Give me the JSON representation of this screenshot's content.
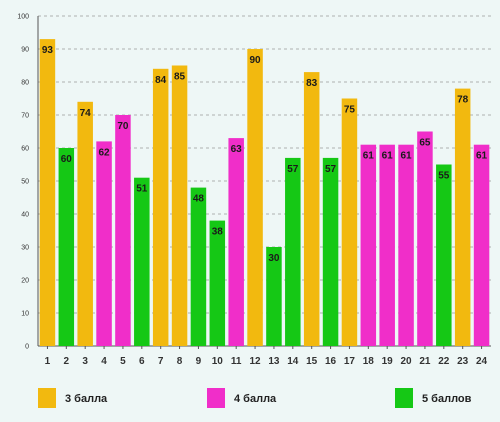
{
  "colors": {
    "orange": "#f2b90f",
    "green": "#15c815",
    "magenta": "#f02ec9",
    "grid": "#999999",
    "axis": "#555555",
    "text": "#333333"
  },
  "chart_data": {
    "type": "bar",
    "title": "",
    "xlabel": "",
    "ylabel": "",
    "ylim": [
      0,
      100
    ],
    "yticks": [
      0,
      10,
      20,
      30,
      40,
      50,
      60,
      70,
      80,
      90,
      100
    ],
    "grid": true,
    "legend_position": "bottom",
    "categories": [
      "1",
      "2",
      "3",
      "4",
      "5",
      "6",
      "7",
      "8",
      "9",
      "10",
      "11",
      "12",
      "13",
      "14",
      "15",
      "16",
      "17",
      "18",
      "19",
      "20",
      "21",
      "22",
      "23",
      "24"
    ],
    "values": [
      93,
      60,
      74,
      62,
      70,
      51,
      84,
      85,
      48,
      38,
      63,
      90,
      30,
      57,
      83,
      57,
      75,
      61,
      61,
      61,
      65,
      55,
      78,
      61
    ],
    "groups": [
      "3 балла",
      "5 баллов",
      "3 балла",
      "4 балла",
      "4 балла",
      "5 баллов",
      "3 балла",
      "3 балла",
      "5 баллов",
      "5 баллов",
      "4 балла",
      "3 балла",
      "5 баллов",
      "5 баллов",
      "3 балла",
      "5 баллов",
      "3 балла",
      "4 балла",
      "4 балла",
      "4 балла",
      "4 балла",
      "5 баллов",
      "3 балла",
      "4 балла"
    ],
    "legend": [
      {
        "name": "3 балла",
        "color": "#f2b90f"
      },
      {
        "name": "4 балла",
        "color": "#f02ec9"
      },
      {
        "name": "5 баллов",
        "color": "#15c815"
      }
    ]
  }
}
